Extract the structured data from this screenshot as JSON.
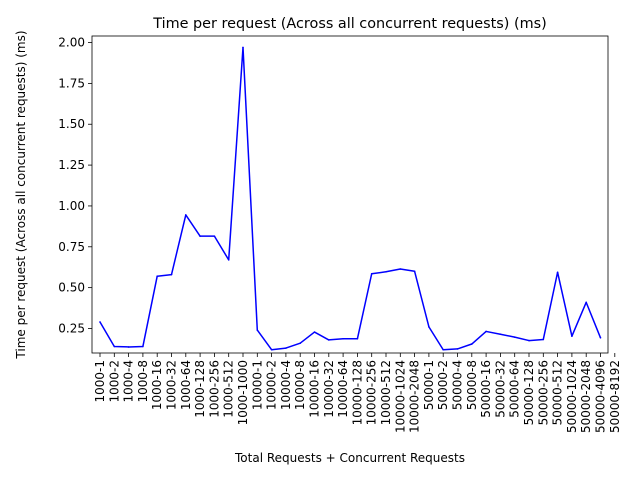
{
  "chart_data": {
    "type": "line",
    "title": "Time per request (Across all concurrent requests) (ms)",
    "xlabel": "Total Requests + Concurrent Requests",
    "ylabel": "Time per request (Across all concurrent requests) (ms)",
    "line_color": "#0000ff",
    "grid": false,
    "legend": "none",
    "ylim": [
      0.1,
      2.04
    ],
    "yticks": [
      0.25,
      0.5,
      0.75,
      1.0,
      1.25,
      1.5,
      1.75,
      2.0
    ],
    "ytick_labels": [
      "0.25",
      "0.50",
      "0.75",
      "1.00",
      "1.25",
      "1.50",
      "1.75",
      "2.00"
    ],
    "categories": [
      "1000-1",
      "1000-2",
      "1000-4",
      "1000-8",
      "1000-16",
      "1000-32",
      "1000-64",
      "1000-128",
      "1000-256",
      "1000-512",
      "1000-1000",
      "10000-1",
      "10000-2",
      "10000-4",
      "10000-8",
      "10000-16",
      "10000-32",
      "10000-64",
      "10000-128",
      "10000-256",
      "10000-512",
      "10000-1024",
      "10000-2048",
      "50000-1",
      "50000-2",
      "50000-4",
      "50000-8",
      "50000-16",
      "50000-32",
      "50000-64",
      "50000-128",
      "50000-256",
      "50000-512",
      "50000-1024",
      "50000-2048",
      "50000-4096",
      "50000-8192"
    ],
    "values": [
      0.29,
      0.14,
      0.137,
      0.14,
      0.57,
      0.58,
      0.945,
      0.815,
      0.815,
      0.67,
      1.97,
      0.24,
      0.12,
      0.13,
      0.16,
      0.228,
      0.18,
      0.187,
      0.187,
      0.585,
      0.597,
      0.614,
      0.6,
      0.26,
      0.12,
      0.125,
      0.155,
      0.232,
      0.215,
      0.197,
      0.176,
      0.183,
      0.594,
      0.203,
      0.41,
      0.193,
      null
    ]
  }
}
